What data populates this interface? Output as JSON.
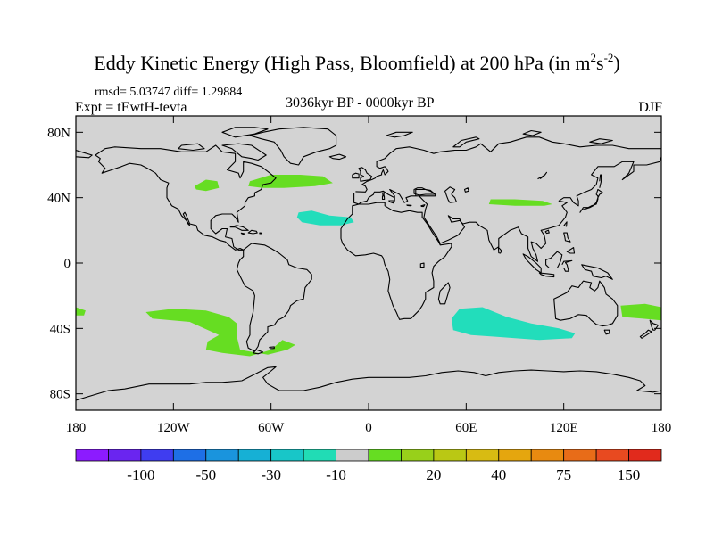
{
  "title": {
    "main": "Eddy Kinetic Energy (High Pass, Bloomfield) at 200 hPa (in m",
    "sup1": "2",
    "mid": "s",
    "sup2": "-2",
    "close": ")"
  },
  "stats": "rmsd= 5.03747 diff= 1.29884",
  "expt": "Expt = tEwtH-tevta",
  "period": "3036kyr BP - 0000kyr BP",
  "season": "DJF",
  "map": {
    "ocean_color": "#d3d3d3",
    "coast_color": "#000000",
    "lat_ticks": [
      {
        "value": 80,
        "label": "80N"
      },
      {
        "value": 40,
        "label": "40N"
      },
      {
        "value": 0,
        "label": "0"
      },
      {
        "value": -40,
        "label": "40S"
      },
      {
        "value": -80,
        "label": "80S"
      }
    ],
    "lon_ticks": [
      {
        "value": -180,
        "label": "180"
      },
      {
        "value": -120,
        "label": "120W"
      },
      {
        "value": -60,
        "label": "60W"
      },
      {
        "value": 0,
        "label": "0"
      },
      {
        "value": 60,
        "label": "60E"
      },
      {
        "value": 120,
        "label": "120E"
      },
      {
        "value": 180,
        "label": "180"
      }
    ]
  },
  "anomaly_regions": [
    {
      "name": "north-america-positive",
      "color": "#66dd22",
      "points": [
        [
          -107,
          47
        ],
        [
          -100,
          51
        ],
        [
          -93,
          50
        ],
        [
          -92,
          46
        ],
        [
          -100,
          44
        ],
        [
          -106,
          45
        ]
      ]
    },
    {
      "name": "north-atlantic-positive",
      "color": "#66dd22",
      "points": [
        [
          -73,
          50
        ],
        [
          -60,
          54
        ],
        [
          -42,
          54
        ],
        [
          -28,
          53
        ],
        [
          -22,
          49
        ],
        [
          -33,
          47
        ],
        [
          -52,
          46
        ],
        [
          -65,
          46
        ],
        [
          -74,
          47
        ]
      ]
    },
    {
      "name": "subtropical-atlantic-negative",
      "color": "#22ddbb",
      "points": [
        [
          -43,
          31
        ],
        [
          -35,
          32
        ],
        [
          -24,
          29
        ],
        [
          -11,
          28
        ],
        [
          -9,
          25
        ],
        [
          -17,
          23
        ],
        [
          -30,
          23
        ],
        [
          -41,
          25
        ],
        [
          -44,
          28
        ]
      ]
    },
    {
      "name": "asia-positive",
      "color": "#66dd22",
      "points": [
        [
          75,
          39
        ],
        [
          90,
          39
        ],
        [
          107,
          38
        ],
        [
          113,
          36
        ],
        [
          108,
          35
        ],
        [
          90,
          35
        ],
        [
          74,
          36
        ]
      ]
    },
    {
      "name": "south-pacific-positive",
      "color": "#66dd22",
      "points": [
        [
          -137,
          -30
        ],
        [
          -120,
          -28
        ],
        [
          -100,
          -29
        ],
        [
          -86,
          -33
        ],
        [
          -81,
          -37
        ],
        [
          -81,
          -45
        ],
        [
          -79,
          -53
        ],
        [
          -62,
          -56
        ],
        [
          -50,
          -53
        ],
        [
          -45,
          -50
        ],
        [
          -53,
          -47
        ],
        [
          -60,
          -53
        ],
        [
          -73,
          -57
        ],
        [
          -90,
          -55
        ],
        [
          -100,
          -53
        ],
        [
          -99,
          -48
        ],
        [
          -92,
          -44
        ],
        [
          -110,
          -36
        ],
        [
          -133,
          -34
        ]
      ]
    },
    {
      "name": "indian-ocean-negative",
      "color": "#22ddbb",
      "points": [
        [
          56,
          -28
        ],
        [
          70,
          -27
        ],
        [
          85,
          -33
        ],
        [
          100,
          -37
        ],
        [
          117,
          -40
        ],
        [
          127,
          -43
        ],
        [
          125,
          -46
        ],
        [
          105,
          -47
        ],
        [
          90,
          -46
        ],
        [
          77,
          -45
        ],
        [
          63,
          -44
        ],
        [
          52,
          -41
        ],
        [
          51,
          -34
        ]
      ]
    },
    {
      "name": "tasman-positive",
      "color": "#66dd22",
      "points": [
        [
          155,
          -26
        ],
        [
          170,
          -25
        ],
        [
          180,
          -27
        ],
        [
          180,
          -35
        ],
        [
          168,
          -34
        ],
        [
          156,
          -33
        ]
      ]
    },
    {
      "name": "west-edge-positive",
      "color": "#66dd22",
      "points": [
        [
          -180,
          -27
        ],
        [
          -174,
          -29
        ],
        [
          -175,
          -32
        ],
        [
          -180,
          -32
        ]
      ]
    }
  ],
  "colorbar": {
    "colors": [
      "#8c1bff",
      "#6a25f0",
      "#3f3df0",
      "#1e6fe6",
      "#1a94dd",
      "#16b0d5",
      "#18c6c8",
      "#21dcb5",
      "#cccccc",
      "#66dd22",
      "#98d01a",
      "#bac814",
      "#d8bb12",
      "#e5a60e",
      "#e88a10",
      "#e86c18",
      "#e84a20",
      "#e12a1c"
    ],
    "labels": [
      {
        "text": "-100",
        "index": 1
      },
      {
        "text": "-50",
        "index": 3
      },
      {
        "text": "-30",
        "index": 5
      },
      {
        "text": "-10",
        "index": 7
      },
      {
        "text": "20",
        "index": 10
      },
      {
        "text": "40",
        "index": 12
      },
      {
        "text": "75",
        "index": 14
      },
      {
        "text": "150",
        "index": 16
      }
    ]
  }
}
